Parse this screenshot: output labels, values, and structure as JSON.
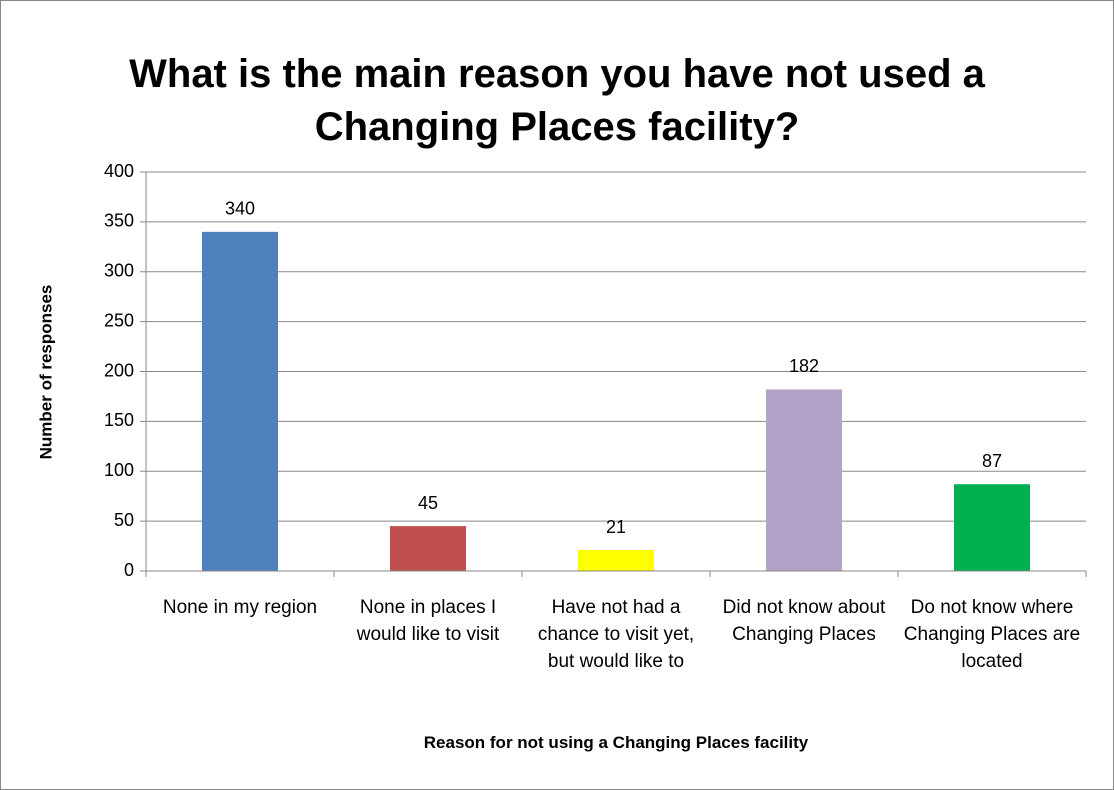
{
  "chart_data": {
    "type": "bar",
    "title": "What is the main reason you have not used a Changing Places facility?",
    "categories": [
      "None in my region",
      "None in places I would like to visit",
      "Have not had a chance to visit yet, but would like to",
      "Did not know about Changing Places",
      "Do not know where Changing Places are located"
    ],
    "values": [
      340,
      45,
      21,
      182,
      87
    ],
    "colors": [
      "#4f81bd",
      "#c0504d",
      "#ffff00",
      "#b3a2c7",
      "#00b050"
    ],
    "xlabel": "Reason for not using a Changing Places facility",
    "ylabel": "Number of responses",
    "ylim": [
      0,
      400
    ],
    "yticks": [
      0,
      50,
      100,
      150,
      200,
      250,
      300,
      350,
      400
    ],
    "grid": true
  }
}
